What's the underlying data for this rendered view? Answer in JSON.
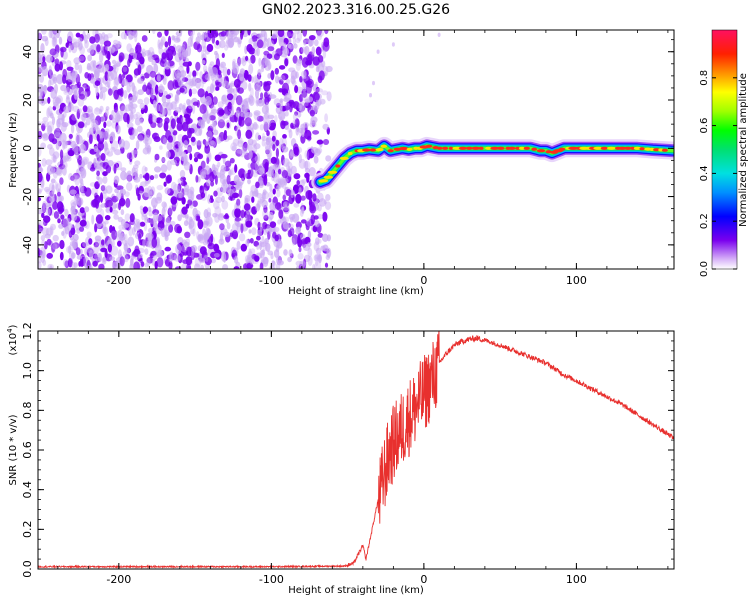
{
  "title": "GN02.2023.316.00.25.G26",
  "colors": {
    "snr_line": "#e8302e",
    "scatter_dense": "#7a00ee",
    "scatter_light": "#c9a8f3",
    "frame": "#000000"
  },
  "chart_data": [
    {
      "type": "heatmap",
      "name": "spectrogram",
      "xlabel": "Height of straight line (km)",
      "ylabel": "Frequency (Hz)",
      "xlim": [
        -253,
        164
      ],
      "ylim": [
        -50,
        49
      ],
      "xticks": [
        -200,
        -100,
        0,
        100
      ],
      "yticks": [
        -40,
        -20,
        0,
        20,
        40
      ],
      "noise_region_x": [
        -253,
        -62
      ],
      "ridge_points": [
        [
          -68,
          -14
        ],
        [
          -64,
          -13
        ],
        [
          -60,
          -10
        ],
        [
          -56,
          -7
        ],
        [
          -52,
          -4
        ],
        [
          -48,
          -2
        ],
        [
          -44,
          -1
        ],
        [
          -40,
          -1
        ],
        [
          -36,
          -0.5
        ],
        [
          -30,
          -1
        ],
        [
          -26,
          1
        ],
        [
          -22,
          -1
        ],
        [
          -18,
          -0.5
        ],
        [
          -14,
          0
        ],
        [
          -10,
          -0.5
        ],
        [
          -6,
          0
        ],
        [
          -2,
          0
        ],
        [
          2,
          1
        ],
        [
          6,
          0.5
        ],
        [
          10,
          0
        ],
        [
          20,
          0
        ],
        [
          30,
          0
        ],
        [
          40,
          0
        ],
        [
          50,
          0
        ],
        [
          60,
          0
        ],
        [
          70,
          0
        ],
        [
          76,
          -1
        ],
        [
          80,
          -1
        ],
        [
          84,
          -2
        ],
        [
          88,
          -1
        ],
        [
          92,
          0
        ],
        [
          100,
          0
        ],
        [
          110,
          0
        ],
        [
          120,
          0
        ],
        [
          130,
          0
        ],
        [
          140,
          0
        ],
        [
          150,
          -0.5
        ],
        [
          164,
          -1
        ]
      ],
      "colorbar": {
        "label": "Normalized spectral amplitude",
        "ticks": [
          "0.0",
          "0.2",
          "0.4",
          "0.6",
          "0.8"
        ],
        "range": [
          0,
          1
        ]
      }
    },
    {
      "type": "line",
      "name": "snr",
      "xlabel": "Height of straight line (km)",
      "ylabel": "SNR (10 * v/v)",
      "y_multiplier": "(x10",
      "y_multiplier_exp": "4",
      "y_multiplier_close": ")",
      "xlim": [
        -253,
        164
      ],
      "ylim": [
        0,
        1.2
      ],
      "xticks": [
        -200,
        -100,
        0,
        100
      ],
      "yticks": [
        "0.0",
        "0.2",
        "0.4",
        "0.6",
        "0.8",
        "1.0",
        "1.2"
      ],
      "ytick_values": [
        0,
        0.2,
        0.4,
        0.6,
        0.8,
        1.0,
        1.2
      ],
      "envelope": [
        [
          -253,
          0.012
        ],
        [
          -200,
          0.012
        ],
        [
          -100,
          0.012
        ],
        [
          -52,
          0.015
        ],
        [
          -46,
          0.03
        ],
        [
          -42,
          0.09
        ],
        [
          -40,
          0.12
        ],
        [
          -38,
          0.05
        ],
        [
          -35,
          0.16
        ],
        [
          -30,
          0.35
        ],
        [
          -26,
          0.5
        ],
        [
          -22,
          0.62
        ],
        [
          -18,
          0.68
        ],
        [
          -14,
          0.73
        ],
        [
          -10,
          0.78
        ],
        [
          -5,
          0.84
        ],
        [
          0,
          0.9
        ],
        [
          5,
          0.97
        ],
        [
          10,
          1.04
        ],
        [
          15,
          1.09
        ],
        [
          20,
          1.13
        ],
        [
          25,
          1.15
        ],
        [
          30,
          1.16
        ],
        [
          35,
          1.165
        ],
        [
          40,
          1.155
        ],
        [
          50,
          1.13
        ],
        [
          60,
          1.1
        ],
        [
          70,
          1.07
        ],
        [
          80,
          1.04
        ],
        [
          88,
          1.0
        ],
        [
          92,
          0.98
        ],
        [
          100,
          0.95
        ],
        [
          110,
          0.91
        ],
        [
          120,
          0.87
        ],
        [
          130,
          0.83
        ],
        [
          140,
          0.78
        ],
        [
          150,
          0.73
        ],
        [
          164,
          0.66
        ]
      ]
    }
  ]
}
